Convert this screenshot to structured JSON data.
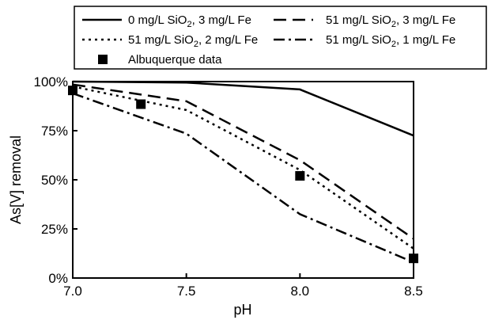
{
  "chart_data": {
    "type": "line",
    "xlabel": "pH",
    "ylabel": "As[V] removal",
    "xlim": [
      7.0,
      8.5
    ],
    "ylim": [
      0,
      100
    ],
    "x_ticks": [
      "7.0",
      "7.5",
      "8.0",
      "8.5"
    ],
    "y_ticks": [
      "0%",
      "25%",
      "50%",
      "75%",
      "100%"
    ],
    "grid": false,
    "legend_position": "top",
    "series": [
      {
        "name": "0 mg/L SiO2, 3 mg/L Fe",
        "name_main": "0 mg/L SiO",
        "name_sub": "2",
        "name_tail": ", 3 mg/L Fe",
        "style": "solid",
        "x": [
          7.0,
          7.5,
          8.0,
          8.5
        ],
        "y": [
          100,
          99.5,
          96,
          72.5
        ]
      },
      {
        "name": "51 mg/L SiO2, 3 mg/L Fe",
        "name_main": "51 mg/L SiO",
        "name_sub": "2",
        "name_tail": ", 3 mg/L Fe",
        "style": "dash",
        "x": [
          7.0,
          7.5,
          8.0,
          8.5
        ],
        "y": [
          98.5,
          90,
          60,
          20
        ]
      },
      {
        "name": "51 mg/L SiO2, 2 mg/L Fe",
        "name_main": "51 mg/L SiO",
        "name_sub": "2",
        "name_tail": ", 2 mg/L Fe",
        "style": "dot",
        "x": [
          7.0,
          7.5,
          8.0,
          8.5
        ],
        "y": [
          97.5,
          85.5,
          55,
          15
        ]
      },
      {
        "name": "51 mg/L SiO2, 1 mg/L Fe",
        "name_main": "51 mg/L SiO",
        "name_sub": "2",
        "name_tail": ", 1 mg/L Fe",
        "style": "dashdot",
        "x": [
          7.0,
          7.5,
          8.0,
          8.5
        ],
        "y": [
          94,
          73.5,
          32.5,
          8
        ]
      },
      {
        "name": "Albuquerque data",
        "style": "marker",
        "x": [
          7.0,
          7.3,
          8.0,
          8.5
        ],
        "y": [
          95.5,
          88.5,
          52,
          10
        ]
      }
    ]
  }
}
